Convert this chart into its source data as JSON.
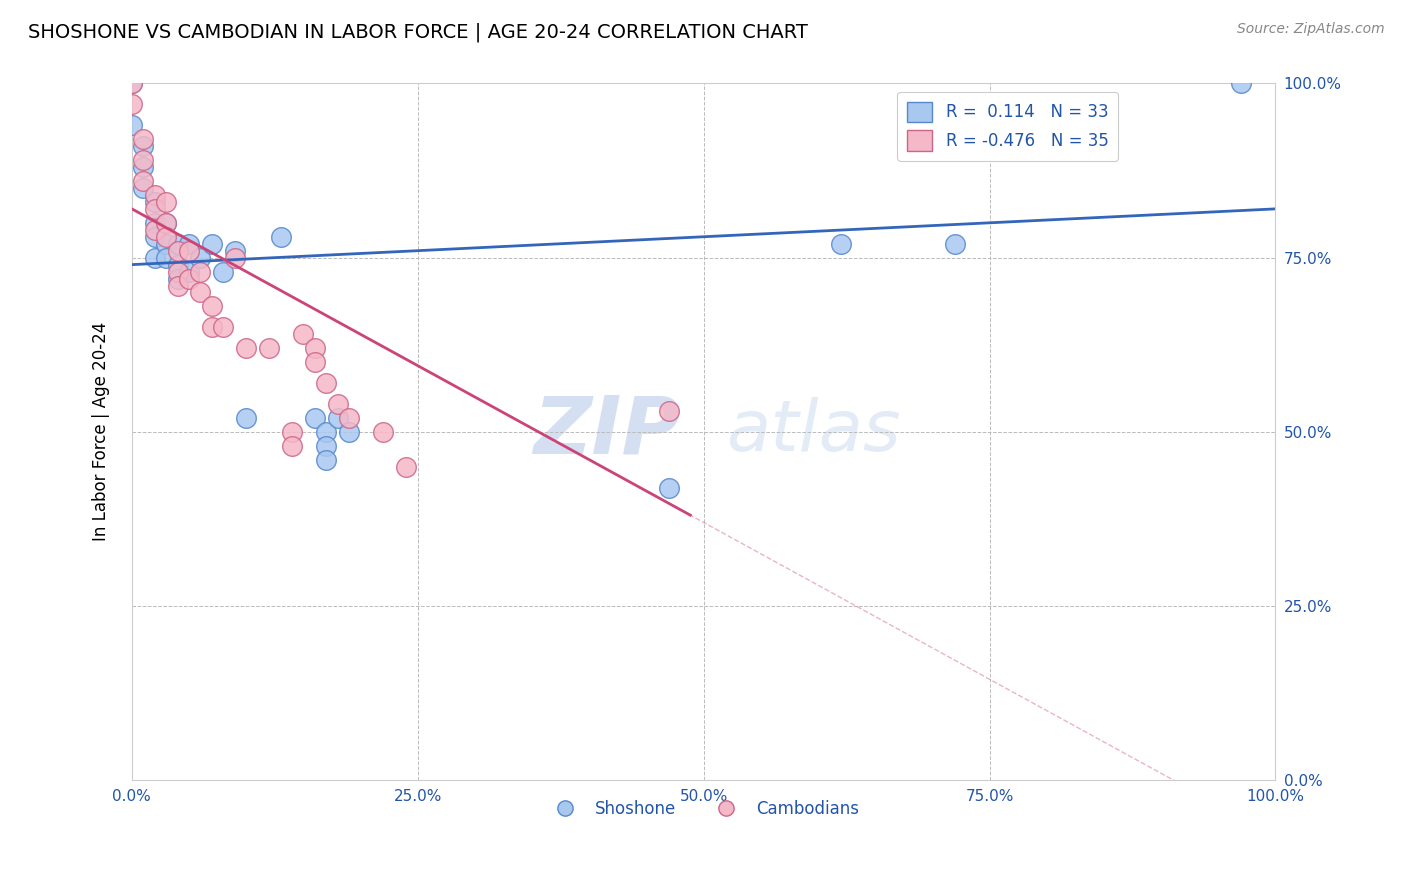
{
  "title": "SHOSHONE VS CAMBODIAN IN LABOR FORCE | AGE 20-24 CORRELATION CHART",
  "source_text": "Source: ZipAtlas.com",
  "ylabel": "In Labor Force | Age 20-24",
  "shoshone_r": 0.114,
  "shoshone_n": 33,
  "cambodian_r": -0.476,
  "cambodian_n": 35,
  "shoshone_color": "#a8c8f0",
  "cambodian_color": "#f5b8c8",
  "shoshone_edge_color": "#5588cc",
  "cambodian_edge_color": "#cc6688",
  "shoshone_line_color": "#3366bb",
  "cambodian_line_color": "#cc4477",
  "watermark_zip": "ZIP",
  "watermark_atlas": "atlas",
  "watermark_zip_color": "#b8cce8",
  "watermark_atlas_color": "#c8d8ee",
  "xlim": [
    0.0,
    1.0
  ],
  "ylim": [
    0.0,
    1.0
  ],
  "xtick_vals": [
    0.0,
    0.25,
    0.5,
    0.75,
    1.0
  ],
  "ytick_vals": [
    0.0,
    0.25,
    0.5,
    0.75,
    1.0
  ],
  "xtick_labels": [
    "0.0%",
    "25.0%",
    "50.0%",
    "75.0%",
    "100.0%"
  ],
  "ytick_labels": [
    "0.0%",
    "25.0%",
    "50.0%",
    "75.0%",
    "100.0%"
  ],
  "shoshone_x": [
    0.0,
    0.0,
    0.01,
    0.01,
    0.01,
    0.02,
    0.02,
    0.02,
    0.02,
    0.03,
    0.03,
    0.03,
    0.04,
    0.04,
    0.04,
    0.05,
    0.05,
    0.06,
    0.07,
    0.08,
    0.09,
    0.1,
    0.13,
    0.16,
    0.17,
    0.17,
    0.17,
    0.18,
    0.19,
    0.47,
    0.62,
    0.72,
    0.97
  ],
  "shoshone_y": [
    1.0,
    0.94,
    0.91,
    0.88,
    0.85,
    0.83,
    0.8,
    0.78,
    0.75,
    0.8,
    0.77,
    0.75,
    0.77,
    0.74,
    0.72,
    0.77,
    0.73,
    0.75,
    0.77,
    0.73,
    0.76,
    0.52,
    0.78,
    0.52,
    0.5,
    0.48,
    0.46,
    0.52,
    0.5,
    0.42,
    0.77,
    0.77,
    1.0
  ],
  "cambodian_x": [
    0.0,
    0.0,
    0.01,
    0.01,
    0.01,
    0.02,
    0.02,
    0.02,
    0.03,
    0.03,
    0.03,
    0.04,
    0.04,
    0.04,
    0.05,
    0.05,
    0.06,
    0.06,
    0.07,
    0.07,
    0.08,
    0.09,
    0.1,
    0.12,
    0.14,
    0.14,
    0.15,
    0.16,
    0.16,
    0.17,
    0.18,
    0.19,
    0.22,
    0.24,
    0.47
  ],
  "cambodian_y": [
    1.0,
    0.97,
    0.92,
    0.89,
    0.86,
    0.84,
    0.82,
    0.79,
    0.83,
    0.8,
    0.78,
    0.76,
    0.73,
    0.71,
    0.76,
    0.72,
    0.73,
    0.7,
    0.68,
    0.65,
    0.65,
    0.75,
    0.62,
    0.62,
    0.5,
    0.48,
    0.64,
    0.62,
    0.6,
    0.57,
    0.54,
    0.52,
    0.5,
    0.45,
    0.53
  ],
  "shoshone_line_intercept": 0.74,
  "shoshone_line_slope": 0.08,
  "cambodian_line_intercept": 0.82,
  "cambodian_line_slope": -0.9
}
